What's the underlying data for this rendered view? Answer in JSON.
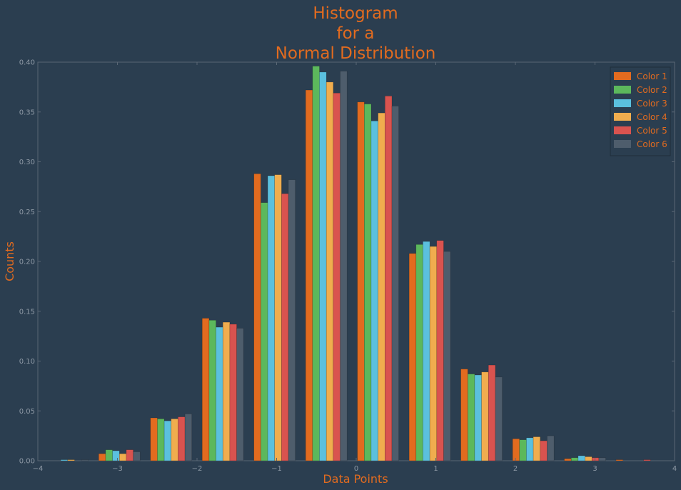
{
  "chart_data": {
    "type": "bar",
    "title": [
      "Histogram",
      "for a",
      "Normal Distribution"
    ],
    "xlabel": "Data Points",
    "ylabel": "Counts",
    "xlim": [
      -4,
      4
    ],
    "ylim": [
      0,
      0.4
    ],
    "xticks": [
      -4,
      -3,
      -2,
      -1,
      0,
      1,
      2,
      3,
      4
    ],
    "xtick_labels": [
      "−4",
      "−3",
      "−2",
      "−1",
      "0",
      "1",
      "2",
      "3",
      "4"
    ],
    "yticks": [
      0.0,
      0.05,
      0.1,
      0.15,
      0.2,
      0.25,
      0.3,
      0.35,
      0.4
    ],
    "ytick_labels": [
      "0.00",
      "0.05",
      "0.10",
      "0.15",
      "0.20",
      "0.25",
      "0.30",
      "0.35",
      "0.40"
    ],
    "bin_edges": [
      -3.95,
      -3.3,
      -2.65,
      -2.0,
      -1.35,
      -0.7,
      -0.05,
      0.6,
      1.25,
      1.9,
      2.55,
      3.2,
      3.85
    ],
    "legend_position": "top-right",
    "grid": false,
    "series": [
      {
        "name": "Color 1",
        "color": "#e26b1f",
        "values": [
          0.0,
          0.007,
          0.043,
          0.143,
          0.288,
          0.372,
          0.36,
          0.208,
          0.092,
          0.022,
          0.002,
          0.001
        ]
      },
      {
        "name": "Color 2",
        "color": "#5cb85c",
        "values": [
          0.0,
          0.011,
          0.042,
          0.141,
          0.259,
          0.396,
          0.358,
          0.217,
          0.087,
          0.021,
          0.003,
          0.0
        ]
      },
      {
        "name": "Color 3",
        "color": "#5bc0de",
        "values": [
          0.001,
          0.01,
          0.04,
          0.134,
          0.286,
          0.39,
          0.341,
          0.22,
          0.086,
          0.023,
          0.005,
          0.0
        ]
      },
      {
        "name": "Color 4",
        "color": "#f0ad4e",
        "values": [
          0.001,
          0.007,
          0.042,
          0.139,
          0.287,
          0.38,
          0.349,
          0.215,
          0.089,
          0.024,
          0.004,
          0.0
        ]
      },
      {
        "name": "Color 5",
        "color": "#d9534f",
        "values": [
          0.0,
          0.011,
          0.044,
          0.137,
          0.268,
          0.369,
          0.366,
          0.221,
          0.096,
          0.02,
          0.003,
          0.001
        ]
      },
      {
        "name": "Color 6",
        "color": "#4e5d6c",
        "values": [
          0.001,
          0.009,
          0.047,
          0.133,
          0.282,
          0.391,
          0.356,
          0.21,
          0.084,
          0.025,
          0.003,
          0.0
        ]
      }
    ]
  }
}
